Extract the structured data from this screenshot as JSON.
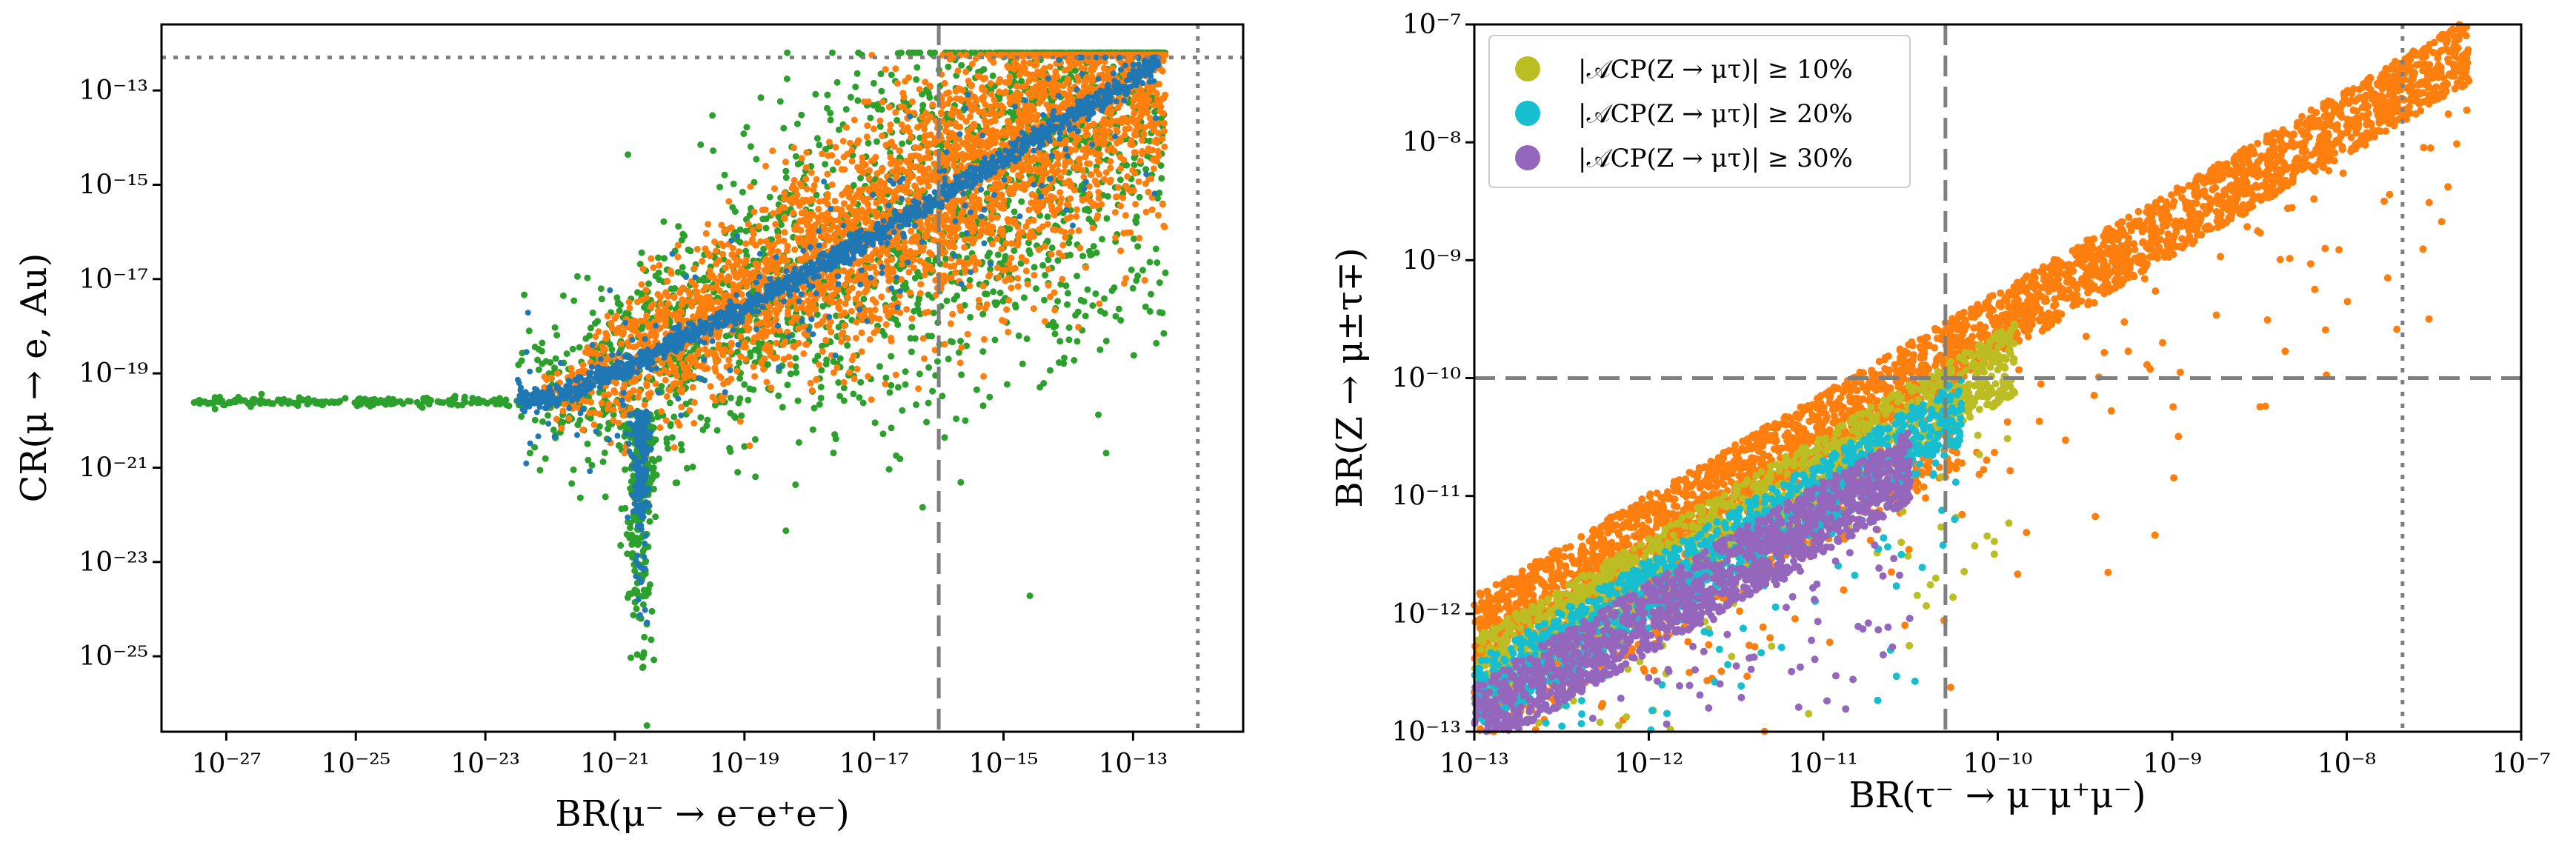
{
  "colors": {
    "orange": "#ff7f0e",
    "blue": "#1f77b4",
    "green": "#2ca02c",
    "olive": "#bcbd22",
    "cyan": "#17becf",
    "purple": "#9467bd",
    "dashed_line": "#7f7f7f"
  },
  "chart_data": [
    {
      "type": "scatter",
      "id": "left",
      "xlabel": "BR(μ⁻ → e⁻e⁺e⁻)",
      "ylabel": "CR(μ → e, Au)",
      "xscale": "log",
      "yscale": "log",
      "xlim_exp": [
        -28,
        -11.3
      ],
      "ylim_exp": [
        -26.6,
        -11.6
      ],
      "xticks": [
        {
          "exp": -27,
          "label": "10⁻²⁷"
        },
        {
          "exp": -25,
          "label": "10⁻²⁵"
        },
        {
          "exp": -23,
          "label": "10⁻²³"
        },
        {
          "exp": -21,
          "label": "10⁻²¹"
        },
        {
          "exp": -19,
          "label": "10⁻¹⁹"
        },
        {
          "exp": -17,
          "label": "10⁻¹⁷"
        },
        {
          "exp": -15,
          "label": "10⁻¹⁵"
        },
        {
          "exp": -13,
          "label": "10⁻¹³"
        }
      ],
      "yticks": [
        {
          "exp": -13,
          "label": "10⁻¹³"
        },
        {
          "exp": -15,
          "label": "10⁻¹⁵"
        },
        {
          "exp": -17,
          "label": "10⁻¹⁷"
        },
        {
          "exp": -19,
          "label": "10⁻¹⁹"
        },
        {
          "exp": -21,
          "label": "10⁻²¹"
        },
        {
          "exp": -23,
          "label": "10⁻²³"
        },
        {
          "exp": -25,
          "label": "10⁻²⁵"
        }
      ],
      "reference_lines": [
        {
          "orientation": "vertical",
          "style": "dashed",
          "value_exp": -16
        },
        {
          "orientation": "vertical",
          "style": "dotted",
          "value_exp": -12
        },
        {
          "orientation": "horizontal",
          "style": "dotted",
          "value_exp": -12.3
        }
      ],
      "series": [
        {
          "name": "green",
          "color_key": "green",
          "description": "broad envelope incl. flat tail near CR≈1e-19.6 down to BR≈5e-28, dip toward 1e-25 at BR≈1e-20.5"
        },
        {
          "name": "orange",
          "color_key": "orange",
          "description": "dense band BR 1e-22 to 1e-12.5"
        },
        {
          "name": "blue",
          "color_key": "blue",
          "description": "narrow curve from (1e-22,1e-19.5) to (1e-12.6,1e-12.4) plus spike near BR≈1e-20.5"
        }
      ]
    },
    {
      "type": "scatter",
      "id": "right",
      "xlabel": "BR(τ⁻ → μ⁻μ⁺μ⁻)",
      "ylabel": "BR(Z → μ±τ∓)",
      "xscale": "log",
      "yscale": "log",
      "xlim_exp": [
        -13,
        -7
      ],
      "ylim_exp": [
        -13,
        -7
      ],
      "xticks": [
        {
          "exp": -13,
          "label": "10⁻¹³"
        },
        {
          "exp": -12,
          "label": "10⁻¹²"
        },
        {
          "exp": -11,
          "label": "10⁻¹¹"
        },
        {
          "exp": -10,
          "label": "10⁻¹⁰"
        },
        {
          "exp": -9,
          "label": "10⁻⁹"
        },
        {
          "exp": -8,
          "label": "10⁻⁸"
        },
        {
          "exp": -7,
          "label": "10⁻⁷"
        }
      ],
      "yticks": [
        {
          "exp": -7,
          "label": "10⁻⁷"
        },
        {
          "exp": -8,
          "label": "10⁻⁸"
        },
        {
          "exp": -9,
          "label": "10⁻⁹"
        },
        {
          "exp": -10,
          "label": "10⁻¹⁰"
        },
        {
          "exp": -11,
          "label": "10⁻¹¹"
        },
        {
          "exp": -12,
          "label": "10⁻¹²"
        },
        {
          "exp": -13,
          "label": "10⁻¹³"
        }
      ],
      "reference_lines": [
        {
          "orientation": "vertical",
          "style": "dashed",
          "value_exp": -10.3
        },
        {
          "orientation": "vertical",
          "style": "dotted",
          "value_exp": -7.68
        },
        {
          "orientation": "horizontal",
          "style": "dashed",
          "value_exp": -10
        }
      ],
      "legend": {
        "placement": "top-left",
        "entries": [
          {
            "label": "|𝒜CP(Z → μτ)| ≥ 10%",
            "color_key": "olive"
          },
          {
            "label": "|𝒜CP(Z → μτ)| ≥ 20%",
            "color_key": "cyan"
          },
          {
            "label": "|𝒜CP(Z → μτ)| ≥ 30%",
            "color_key": "purple"
          }
        ]
      },
      "series": [
        {
          "name": "all points",
          "color_key": "orange",
          "description": "band from (1e-13,1e-11.9) to (1e-7.3,1e-7)"
        },
        {
          "name": "|A_CP| >= 10%",
          "color_key": "olive",
          "description": "band below orange, BR(τ) < 1e-9.9"
        },
        {
          "name": "|A_CP| >= 20%",
          "color_key": "cyan",
          "description": "narrower band, BR(τ) < 1e-10.2"
        },
        {
          "name": "|A_CP| >= 30%",
          "color_key": "purple",
          "description": "lowest band, BR(τ) < 1e-10.5"
        }
      ]
    }
  ]
}
